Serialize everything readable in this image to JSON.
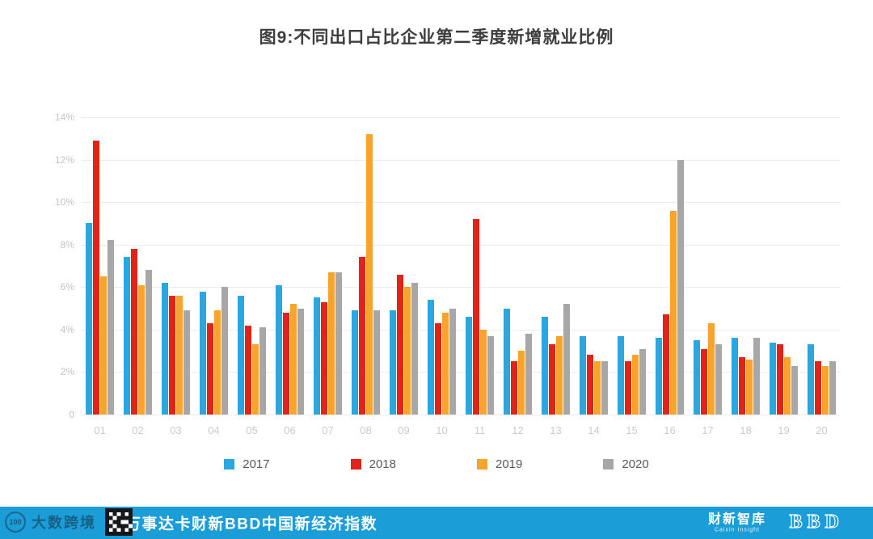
{
  "title": "图9:不同出口占比企业第二季度新增就业比例",
  "chart_data": {
    "type": "bar",
    "title": "图9:不同出口占比企业第二季度新增就业比例",
    "xlabel": "",
    "ylabel": "",
    "ylim": [
      0,
      14
    ],
    "ytick_step": 2,
    "ytick_labels": [
      "0",
      "2%",
      "4%",
      "6%",
      "8%",
      "10%",
      "12%",
      "14%"
    ],
    "grid": true,
    "legend_position": "bottom",
    "categories": [
      "01",
      "02",
      "03",
      "04",
      "05",
      "06",
      "07",
      "08",
      "09",
      "10",
      "11",
      "12",
      "13",
      "14",
      "15",
      "16",
      "17",
      "18",
      "19",
      "20"
    ],
    "series": [
      {
        "name": "2017",
        "color": "#29A8E0",
        "values": [
          9.0,
          7.4,
          6.2,
          5.8,
          5.6,
          6.1,
          5.5,
          4.9,
          4.9,
          5.4,
          4.6,
          5.0,
          4.6,
          3.7,
          3.7,
          3.6,
          3.5,
          3.6,
          3.4,
          3.3
        ]
      },
      {
        "name": "2018",
        "color": "#E2231A",
        "values": [
          12.9,
          7.8,
          5.6,
          4.3,
          4.2,
          4.8,
          5.3,
          7.4,
          6.6,
          4.3,
          9.2,
          2.5,
          3.3,
          2.8,
          2.5,
          4.7,
          3.1,
          2.7,
          3.3,
          2.5
        ]
      },
      {
        "name": "2019",
        "color": "#F5A42C",
        "values": [
          6.5,
          6.1,
          5.6,
          4.9,
          3.3,
          5.2,
          6.7,
          13.2,
          6.0,
          4.8,
          4.0,
          3.0,
          3.7,
          2.5,
          2.8,
          9.6,
          4.3,
          2.6,
          2.7,
          2.3
        ]
      },
      {
        "name": "2020",
        "color": "#A7A7A7",
        "values": [
          8.2,
          6.8,
          4.9,
          6.0,
          4.1,
          5.0,
          6.7,
          4.9,
          6.2,
          5.0,
          3.7,
          3.8,
          5.2,
          2.5,
          3.1,
          12.0,
          3.3,
          3.6,
          2.3,
          2.5
        ]
      }
    ]
  },
  "footer": {
    "bar_color": "#1B9DD8",
    "text": "万事达卡财新BBD中国新经济指数",
    "right_logo_1": "财新智库",
    "right_logo_1_sub": "Caixin Insight",
    "right_logo_2": "BBD"
  },
  "watermark": {
    "badge": "100",
    "text": "大数跨境"
  }
}
